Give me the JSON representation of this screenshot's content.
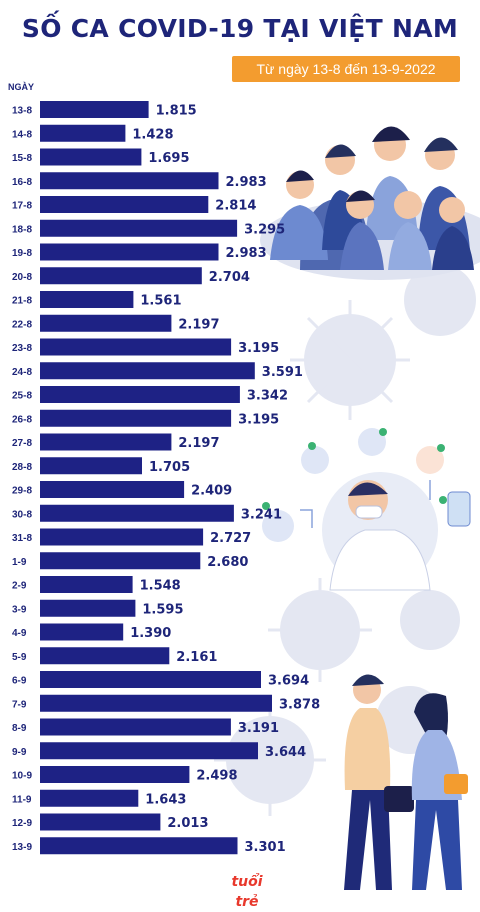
{
  "header": {
    "title": "SỐ CA COVID-19 TẠI VIỆT NAM",
    "subtitle": "Từ ngày 13-8 đến 13-9-2022"
  },
  "logo": {
    "text": "tuổi trẻ"
  },
  "colors": {
    "title": "#1e2579",
    "bar": "#1e2285",
    "accent": "#f39c2f",
    "logo": "#e8382c"
  },
  "chart_data": {
    "type": "bar",
    "orientation": "horizontal",
    "ylabel": "NGÀY",
    "categories": [
      "13-8",
      "14-8",
      "15-8",
      "16-8",
      "17-8",
      "18-8",
      "19-8",
      "20-8",
      "21-8",
      "22-8",
      "23-8",
      "24-8",
      "25-8",
      "26-8",
      "27-8",
      "28-8",
      "29-8",
      "30-8",
      "31-8",
      "1-9",
      "2-9",
      "3-9",
      "4-9",
      "5-9",
      "6-9",
      "7-9",
      "8-9",
      "9-9",
      "10-9",
      "11-9",
      "12-9",
      "13-9"
    ],
    "values": [
      1815,
      1428,
      1695,
      2983,
      2814,
      3295,
      2983,
      2704,
      1561,
      2197,
      3195,
      3591,
      3342,
      3195,
      2197,
      1705,
      2409,
      3241,
      2727,
      2680,
      1548,
      1595,
      1390,
      2161,
      3694,
      3878,
      3191,
      3644,
      2498,
      1643,
      2013,
      3301
    ],
    "value_labels": [
      "1.815",
      "1.428",
      "1.695",
      "2.983",
      "2.814",
      "3.295",
      "2.983",
      "2.704",
      "1.561",
      "2.197",
      "3.195",
      "3.591",
      "3.342",
      "3.195",
      "2.197",
      "1.705",
      "2.409",
      "3.241",
      "2.727",
      "2.680",
      "1.548",
      "1.595",
      "1.390",
      "2.161",
      "3.694",
      "3.878",
      "3.191",
      "3.644",
      "2.498",
      "1.643",
      "2.013",
      "3.301"
    ],
    "xlim": [
      0,
      3878
    ]
  }
}
